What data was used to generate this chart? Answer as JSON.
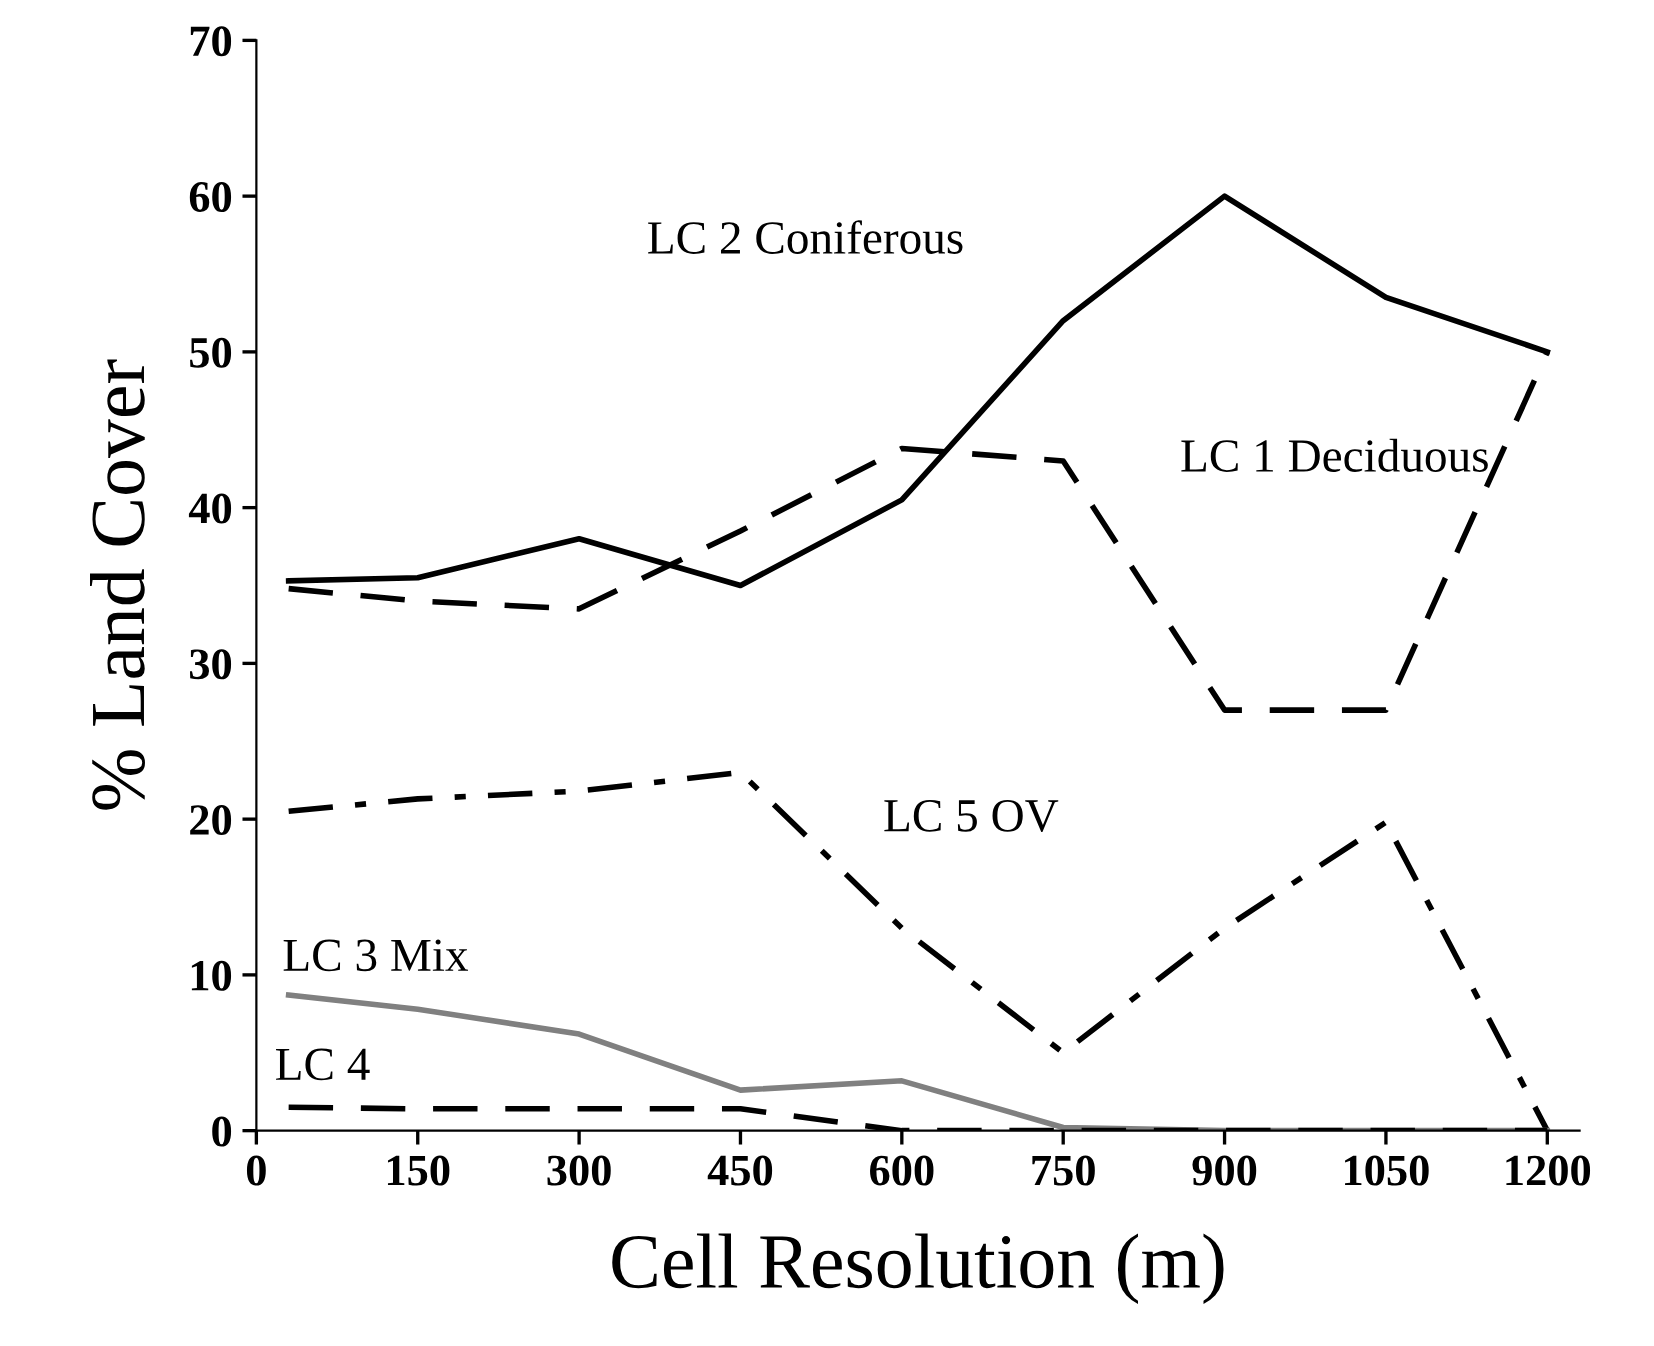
{
  "chart_data": {
    "type": "line",
    "xlabel": "Cell Resolution (m)",
    "ylabel": "% Land Cover",
    "x": [
      30,
      150,
      300,
      450,
      600,
      750,
      900,
      1050,
      1200
    ],
    "xlim": [
      0,
      1230
    ],
    "xticks": [
      0,
      150,
      300,
      450,
      600,
      750,
      900,
      1050,
      1200
    ],
    "ylim": [
      0,
      70
    ],
    "yticks": [
      0,
      10,
      20,
      30,
      40,
      50,
      60,
      70
    ],
    "grid": false,
    "marker": "none",
    "series": [
      {
        "name": "LC 2 Coniferous",
        "color": "#000000",
        "line_style": "solid",
        "values": [
          35.3,
          35.5,
          38,
          35,
          40.5,
          52,
          60,
          53.5,
          50
        ]
      },
      {
        "name": "LC 1 Deciduous",
        "color": "#000000",
        "line_style": "dashed",
        "values": [
          34.8,
          34,
          33.5,
          38.5,
          43.8,
          43,
          27,
          27,
          50
        ]
      },
      {
        "name": "LC 5 OV",
        "color": "#000000",
        "line_style": "dashdot",
        "values": [
          20.5,
          21.3,
          21.8,
          23,
          13,
          5,
          13,
          19.8,
          0
        ]
      },
      {
        "name": "LC 3 Mix",
        "color": "#808080",
        "line_style": "solid",
        "values": [
          8.7,
          7.8,
          6.2,
          2.6,
          3.2,
          0.2,
          0,
          0,
          0
        ]
      },
      {
        "name": "LC 4",
        "color": "#000000",
        "line_style": "dashed",
        "values": [
          1.5,
          1.4,
          1.4,
          1.4,
          0,
          0,
          0,
          0,
          0
        ]
      }
    ]
  }
}
